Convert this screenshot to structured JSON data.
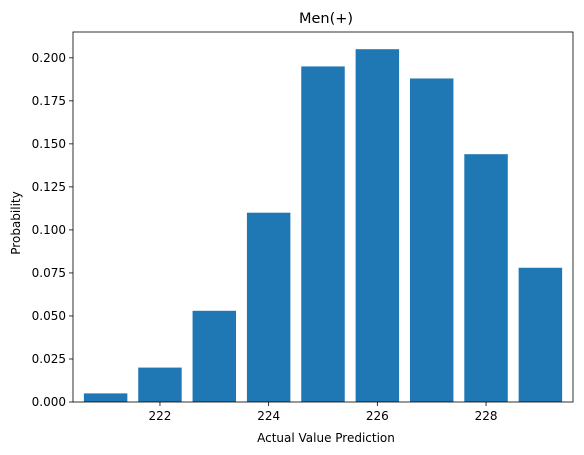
{
  "chart_data": {
    "type": "bar",
    "title": "Men(+)",
    "xlabel": "Actual Value Prediction",
    "ylabel": "Probability",
    "x": [
      221,
      222,
      223,
      224,
      225,
      226,
      227,
      228,
      229
    ],
    "values": [
      0.005,
      0.02,
      0.053,
      0.11,
      0.195,
      0.205,
      0.188,
      0.144,
      0.078
    ],
    "xlim": [
      220.4,
      229.6
    ],
    "ylim": [
      0,
      0.215
    ],
    "xticks": [
      222,
      224,
      226,
      228
    ],
    "xtick_labels": [
      "222",
      "224",
      "226",
      "228"
    ],
    "yticks": [
      0,
      0.025,
      0.05,
      0.075,
      0.1,
      0.125,
      0.15,
      0.175,
      0.2
    ],
    "ytick_labels": [
      "0.000",
      "0.025",
      "0.050",
      "0.075",
      "0.100",
      "0.125",
      "0.150",
      "0.175",
      "0.200"
    ],
    "bar_color": "#1f77b4",
    "grid": false,
    "legend": false
  }
}
